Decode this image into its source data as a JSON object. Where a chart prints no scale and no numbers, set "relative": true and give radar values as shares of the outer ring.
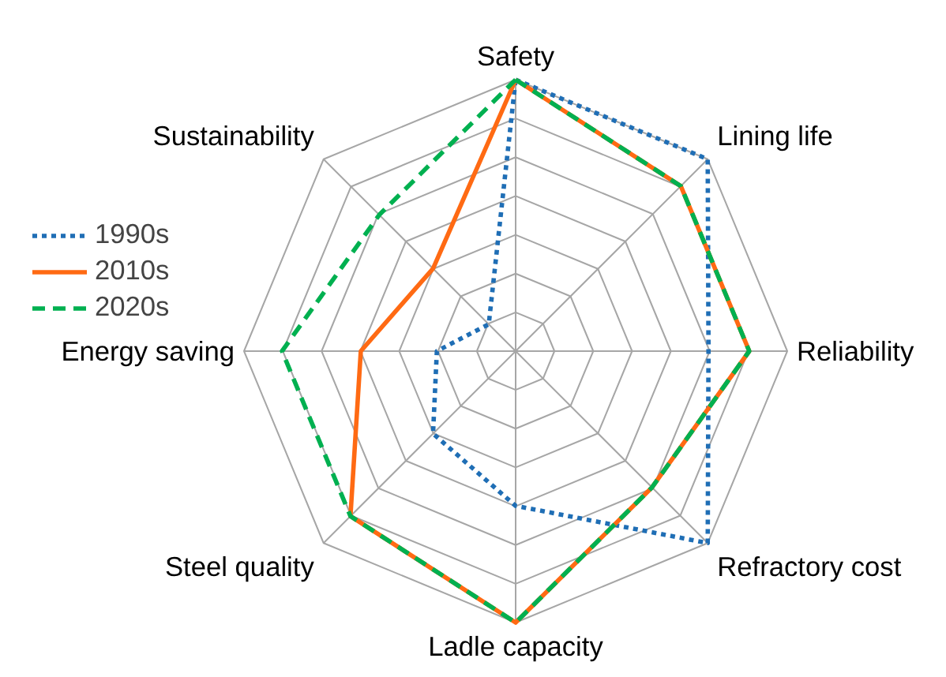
{
  "chart_data": {
    "type": "radar",
    "relative": true,
    "grid": true,
    "legend": "top left",
    "categories": [
      "Safety",
      "Lining life",
      "Reliability",
      "Refractory cost",
      "Ladle capacity",
      "Steel quality",
      "Energy saving",
      "Sustainability"
    ],
    "series": [
      {
        "name": "1990s",
        "color": "#1f6eb5",
        "line_style": "dotted",
        "values": [
          1,
          1,
          0.71,
          1,
          0.57,
          0.43,
          0.29,
          0.14
        ]
      },
      {
        "name": "2010s",
        "color": "#ff6a13",
        "line_style": "solid",
        "values": [
          1,
          0.86,
          0.86,
          0.71,
          1,
          0.86,
          0.57,
          0.43
        ]
      },
      {
        "name": "2020s",
        "color": "#00b050",
        "line_style": "dashed",
        "values": [
          1,
          0.86,
          0.86,
          0.71,
          1,
          0.86,
          0.86,
          0.71
        ]
      }
    ]
  }
}
